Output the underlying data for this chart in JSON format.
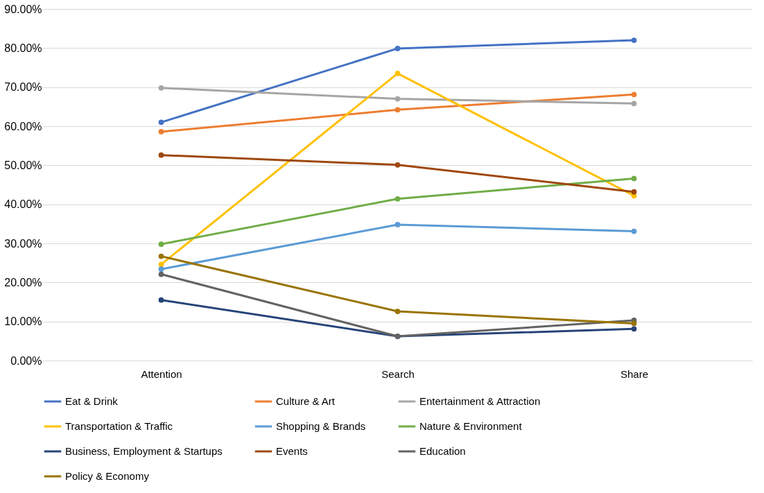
{
  "chart_data": {
    "type": "line",
    "categories": [
      "Attention",
      "Search",
      "Share"
    ],
    "ylim": [
      0,
      90
    ],
    "yticks": [
      {
        "value": 0,
        "label": "0.00%"
      },
      {
        "value": 10,
        "label": "10.00%"
      },
      {
        "value": 20,
        "label": "20.00%"
      },
      {
        "value": 30,
        "label": "30.00%"
      },
      {
        "value": 40,
        "label": "40.00%"
      },
      {
        "value": 50,
        "label": "50.00%"
      },
      {
        "value": 60,
        "label": "60.00%"
      },
      {
        "value": 70,
        "label": "70.00%"
      },
      {
        "value": 80,
        "label": "80.00%"
      },
      {
        "value": 90,
        "label": "90.00%"
      }
    ],
    "grid": "y",
    "legend": "bottom",
    "marker": "circle",
    "line_style": "solid",
    "series": [
      {
        "name": "Eat & Drink",
        "color": "#4472c4",
        "values": [
          61.0,
          79.9,
          82.0
        ]
      },
      {
        "name": "Culture & Art",
        "color": "#ed7d31",
        "values": [
          58.6,
          64.2,
          68.1
        ]
      },
      {
        "name": "Entertainment & Attraction",
        "color": "#a5a5a5",
        "values": [
          69.8,
          67.0,
          65.8
        ]
      },
      {
        "name": "Transportation & Traffic",
        "color": "#ffc000",
        "values": [
          24.6,
          73.5,
          42.2
        ]
      },
      {
        "name": "Shopping & Brands",
        "color": "#5b9bd5",
        "values": [
          23.4,
          34.8,
          33.1
        ]
      },
      {
        "name": "Nature & Environment",
        "color": "#70ad47",
        "values": [
          29.8,
          41.4,
          46.6
        ]
      },
      {
        "name": "Business, Employment & Startups",
        "color": "#264478",
        "values": [
          15.5,
          6.2,
          8.1
        ]
      },
      {
        "name": "Events",
        "color": "#9e480e",
        "values": [
          52.6,
          50.1,
          43.2
        ]
      },
      {
        "name": "Education",
        "color": "#636363",
        "values": [
          22.1,
          6.2,
          10.3
        ]
      },
      {
        "name": "Policy & Economy",
        "color": "#997300",
        "values": [
          26.7,
          12.6,
          9.5
        ]
      }
    ]
  }
}
